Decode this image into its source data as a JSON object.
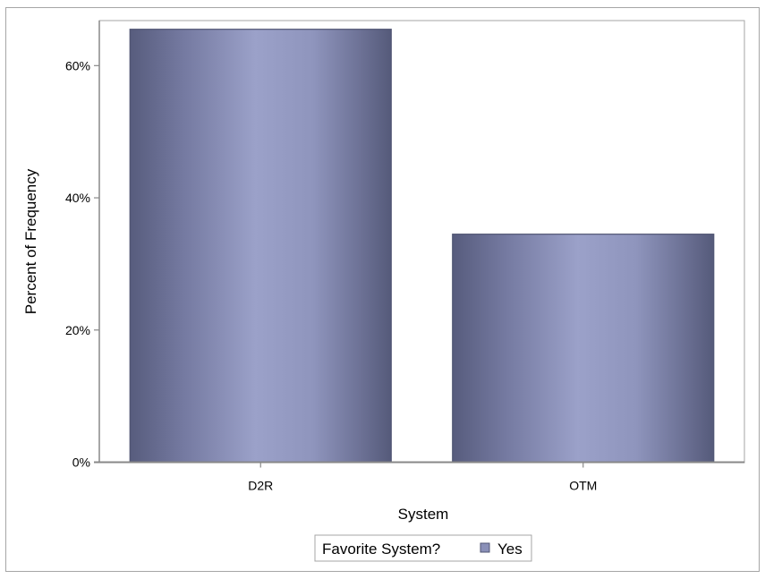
{
  "chart_data": {
    "type": "bar",
    "categories": [
      "D2R",
      "OTM"
    ],
    "values": [
      65.5,
      34.5
    ],
    "xlabel": "System",
    "ylabel": "Percent of Frequency",
    "ylim": [
      0,
      66
    ],
    "yticks": [
      0,
      20,
      40,
      60
    ],
    "ytick_labels": [
      "0%",
      "20%",
      "40%",
      "60%"
    ],
    "grid": false,
    "legend": {
      "title": "Favorite System?",
      "entries": [
        "Yes"
      ],
      "position": "bottom"
    },
    "colors": {
      "bar_edge": "#505573",
      "bar_dark": "#5a5f80",
      "bar_light": "#9aa0c8",
      "axis": "#888888",
      "frame": "#a6a6a6"
    }
  }
}
